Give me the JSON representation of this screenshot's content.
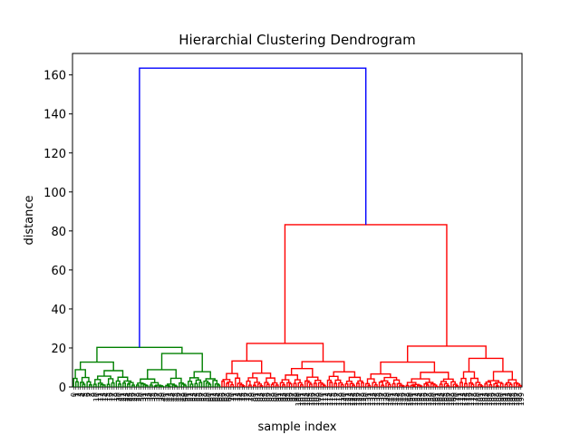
{
  "chart_data": {
    "type": "dendrogram",
    "title": "Hierarchial Clustering Dendrogram",
    "xlabel": "sample index",
    "ylabel": "distance",
    "ylim": [
      0,
      171
    ],
    "yticks": [
      0,
      20,
      40,
      60,
      80,
      100,
      120,
      140,
      160
    ],
    "grid": false,
    "legend": "none",
    "colors": {
      "root_link": "#0000ff",
      "cluster_1": "#008000",
      "cluster_2": "#ff0000",
      "axes": "#000000"
    },
    "leaf_count": 200,
    "merges": [
      {
        "name": "root",
        "height": 163.5,
        "color": "#0000ff",
        "children": [
          "cluster-green",
          "cluster-red"
        ]
      },
      {
        "name": "cluster-green",
        "height": 20.3,
        "color": "#008000"
      },
      {
        "name": "cluster-red",
        "height": 83.2,
        "color": "#ff0000"
      },
      {
        "name": "red-left",
        "height": 22.6,
        "color": "#ff0000"
      },
      {
        "name": "red-right",
        "height": 22.4,
        "color": "#ff0000"
      },
      {
        "name": "green-left",
        "height": 13.2,
        "color": "#008000"
      },
      {
        "name": "green-right",
        "height": 19.6,
        "color": "#008000"
      }
    ]
  }
}
